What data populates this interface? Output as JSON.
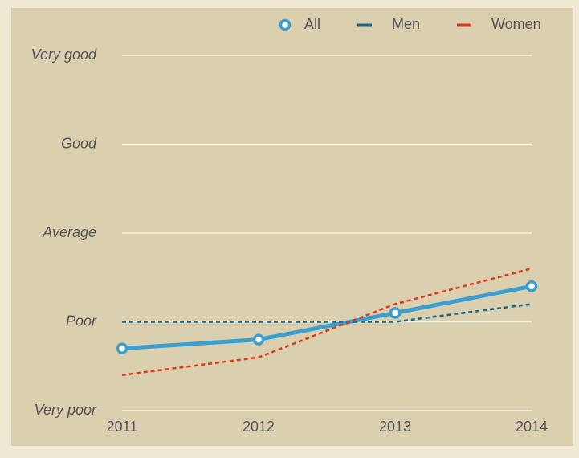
{
  "chart_data": {
    "type": "line",
    "categories": [
      "2011",
      "2012",
      "2013",
      "2014"
    ],
    "series": [
      {
        "name": "All",
        "color": "#3a9fd0",
        "line_style": "solid",
        "markers": true,
        "values": [
          1.7,
          1.8,
          2.1,
          2.4
        ]
      },
      {
        "name": "Men",
        "color": "#17698a",
        "line_style": "dashed",
        "markers": false,
        "values": [
          2,
          2,
          2,
          2.2
        ]
      },
      {
        "name": "Women",
        "color": "#e2361a",
        "line_style": "dashed",
        "markers": false,
        "values": [
          1.4,
          1.6,
          2.2,
          2.6
        ]
      }
    ],
    "ylim": [
      1,
      5
    ],
    "yticks": [
      {
        "value": 1,
        "label": "Very poor"
      },
      {
        "value": 2,
        "label": "Poor"
      },
      {
        "value": 3,
        "label": "Average"
      },
      {
        "value": 4,
        "label": "Good"
      },
      {
        "value": 5,
        "label": "Very good"
      }
    ],
    "grid": true,
    "legend": "top-right"
  }
}
